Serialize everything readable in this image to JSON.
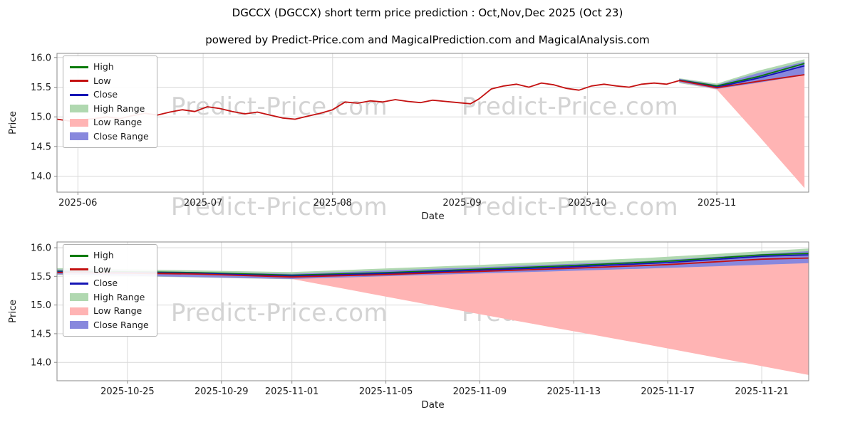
{
  "title": "DGCCX (DGCCX) short term price prediction : Oct,Nov,Dec 2025 (Oct 23)",
  "subtitle": "powered by Predict-Price.com and MagicalPrediction.com and MagicalAnalysis.com",
  "watermark": "Predict-Price.com",
  "colors": {
    "high": "#0a7a0a",
    "low": "#c41111",
    "close": "#1515b5",
    "high_range": "#b0d8b0",
    "low_range": "#ffb4b4",
    "close_range": "#8888dd",
    "grid": "#d9d9d9",
    "spine": "#8a8a8a",
    "tick_text": "#1a1a1a"
  },
  "legend": [
    {
      "label": "High",
      "type": "line",
      "color": "high"
    },
    {
      "label": "Low",
      "type": "line",
      "color": "low"
    },
    {
      "label": "Close",
      "type": "line",
      "color": "close"
    },
    {
      "label": "High Range",
      "type": "band",
      "color": "high_range"
    },
    {
      "label": "Low Range",
      "type": "band",
      "color": "low_range"
    },
    {
      "label": "Close Range",
      "type": "band",
      "color": "close_range"
    }
  ],
  "chart_data": [
    {
      "id": "chart-0",
      "type": "line",
      "xlabel": "Date",
      "ylabel": "Price",
      "xlim": [
        "2025-05-27",
        "2025-11-23"
      ],
      "ylim": [
        13.73,
        16.07
      ],
      "yticks": [
        14.0,
        14.5,
        15.0,
        15.5,
        16.0
      ],
      "xticks": [
        [
          "2025-06-01",
          "2025-06"
        ],
        [
          "2025-07-01",
          "2025-07"
        ],
        [
          "2025-08-01",
          "2025-08"
        ],
        [
          "2025-09-01",
          "2025-09"
        ],
        [
          "2025-10-01",
          "2025-10"
        ],
        [
          "2025-11-01",
          "2025-11"
        ]
      ],
      "bands": [
        {
          "name": "High Range",
          "color": "high_range",
          "dates": [
            "2025-10-23",
            "2025-11-01",
            "2025-11-11",
            "2025-11-22"
          ],
          "upper": [
            15.65,
            15.56,
            15.78,
            15.97
          ],
          "lower": [
            15.57,
            15.46,
            15.56,
            15.76
          ]
        },
        {
          "name": "Low Range",
          "color": "low_range",
          "dates": [
            "2025-10-23",
            "2025-11-01",
            "2025-11-11",
            "2025-11-22"
          ],
          "upper": [
            15.63,
            15.52,
            15.62,
            15.73
          ],
          "lower": [
            15.58,
            15.46,
            14.68,
            13.8
          ]
        },
        {
          "name": "Close Range",
          "color": "close_range",
          "dates": [
            "2025-10-23",
            "2025-11-01",
            "2025-11-11",
            "2025-11-22"
          ],
          "upper": [
            15.64,
            15.54,
            15.74,
            15.93
          ],
          "lower": [
            15.585,
            15.47,
            15.575,
            15.7
          ]
        }
      ],
      "series": [
        {
          "name": "High",
          "color": "high",
          "points": [
            [
              "2025-10-23",
              15.62
            ],
            [
              "2025-11-01",
              15.52
            ],
            [
              "2025-11-11",
              15.68
            ],
            [
              "2025-11-22",
              15.9
            ]
          ]
        },
        {
          "name": "Close",
          "color": "close",
          "points": [
            [
              "2025-10-23",
              15.615
            ],
            [
              "2025-11-01",
              15.5
            ],
            [
              "2025-11-11",
              15.655
            ],
            [
              "2025-11-22",
              15.86
            ]
          ]
        },
        {
          "name": "Low",
          "color": "low",
          "points": [
            [
              "2025-05-27",
              14.96
            ],
            [
              "2025-05-30",
              14.93
            ],
            [
              "2025-06-02",
              14.95
            ],
            [
              "2025-06-05",
              14.97
            ],
            [
              "2025-06-08",
              15.0
            ],
            [
              "2025-06-11",
              14.97
            ],
            [
              "2025-06-14",
              15.02
            ],
            [
              "2025-06-17",
              15.06
            ],
            [
              "2025-06-20",
              15.03
            ],
            [
              "2025-06-23",
              15.08
            ],
            [
              "2025-06-26",
              15.12
            ],
            [
              "2025-06-29",
              15.09
            ],
            [
              "2025-07-02",
              15.17
            ],
            [
              "2025-07-05",
              15.14
            ],
            [
              "2025-07-08",
              15.09
            ],
            [
              "2025-07-11",
              15.05
            ],
            [
              "2025-07-14",
              15.08
            ],
            [
              "2025-07-17",
              15.03
            ],
            [
              "2025-07-20",
              14.98
            ],
            [
              "2025-07-23",
              14.96
            ],
            [
              "2025-07-26",
              15.01
            ],
            [
              "2025-07-29",
              15.06
            ],
            [
              "2025-08-01",
              15.12
            ],
            [
              "2025-08-04",
              15.25
            ],
            [
              "2025-08-07",
              15.23
            ],
            [
              "2025-08-10",
              15.27
            ],
            [
              "2025-08-13",
              15.25
            ],
            [
              "2025-08-16",
              15.29
            ],
            [
              "2025-08-19",
              15.26
            ],
            [
              "2025-08-22",
              15.24
            ],
            [
              "2025-08-25",
              15.28
            ],
            [
              "2025-08-28",
              15.26
            ],
            [
              "2025-08-31",
              15.24
            ],
            [
              "2025-09-03",
              15.22
            ],
            [
              "2025-09-05",
              15.3
            ],
            [
              "2025-09-08",
              15.47
            ],
            [
              "2025-09-11",
              15.52
            ],
            [
              "2025-09-14",
              15.55
            ],
            [
              "2025-09-17",
              15.5
            ],
            [
              "2025-09-20",
              15.57
            ],
            [
              "2025-09-23",
              15.54
            ],
            [
              "2025-09-26",
              15.48
            ],
            [
              "2025-09-29",
              15.45
            ],
            [
              "2025-10-02",
              15.52
            ],
            [
              "2025-10-05",
              15.55
            ],
            [
              "2025-10-08",
              15.52
            ],
            [
              "2025-10-11",
              15.5
            ],
            [
              "2025-10-14",
              15.55
            ],
            [
              "2025-10-17",
              15.57
            ],
            [
              "2025-10-20",
              15.55
            ],
            [
              "2025-10-23",
              15.61
            ],
            [
              "2025-11-01",
              15.49
            ],
            [
              "2025-11-11",
              15.6
            ],
            [
              "2025-11-22",
              15.71
            ]
          ]
        }
      ]
    },
    {
      "id": "chart-1",
      "type": "line",
      "xlabel": "Date",
      "ylabel": "Price",
      "xlim": [
        "2025-10-22",
        "2025-11-23"
      ],
      "ylim": [
        13.68,
        16.1
      ],
      "yticks": [
        14.0,
        14.5,
        15.0,
        15.5,
        16.0
      ],
      "xticks": [
        [
          "2025-10-25",
          "2025-10-25"
        ],
        [
          "2025-10-29",
          "2025-10-29"
        ],
        [
          "2025-11-01",
          "2025-11-01"
        ],
        [
          "2025-11-05",
          "2025-11-05"
        ],
        [
          "2025-11-09",
          "2025-11-09"
        ],
        [
          "2025-11-13",
          "2025-11-13"
        ],
        [
          "2025-11-17",
          "2025-11-17"
        ],
        [
          "2025-11-21",
          "2025-11-21"
        ]
      ],
      "bands": [
        {
          "name": "High Range",
          "color": "high_range",
          "dates": [
            "2025-10-22",
            "2025-11-01",
            "2025-11-09",
            "2025-11-16",
            "2025-11-23"
          ],
          "upper": [
            15.645,
            15.575,
            15.7,
            15.82,
            15.985
          ],
          "lower": [
            15.525,
            15.45,
            15.535,
            15.625,
            15.775
          ]
        },
        {
          "name": "Low Range",
          "color": "low_range",
          "dates": [
            "2025-10-22",
            "2025-11-01",
            "2025-11-09",
            "2025-11-16",
            "2025-11-23"
          ],
          "upper": [
            15.6,
            15.525,
            15.62,
            15.665,
            15.735
          ],
          "lower": [
            15.535,
            15.455,
            14.84,
            14.32,
            13.78
          ]
        },
        {
          "name": "Close Range",
          "color": "close_range",
          "dates": [
            "2025-10-22",
            "2025-11-01",
            "2025-11-09",
            "2025-11-16",
            "2025-11-23"
          ],
          "upper": [
            15.62,
            15.545,
            15.66,
            15.765,
            15.94
          ],
          "lower": [
            15.535,
            15.455,
            15.55,
            15.635,
            15.73
          ]
        }
      ],
      "series": [
        {
          "name": "High",
          "color": "high",
          "points": [
            [
              "2025-10-22",
              15.59
            ],
            [
              "2025-10-25",
              15.58
            ],
            [
              "2025-10-28",
              15.565
            ],
            [
              "2025-11-01",
              15.52
            ],
            [
              "2025-11-05",
              15.565
            ],
            [
              "2025-11-09",
              15.625
            ],
            [
              "2025-11-13",
              15.69
            ],
            [
              "2025-11-17",
              15.765
            ],
            [
              "2025-11-21",
              15.875
            ],
            [
              "2025-11-23",
              15.9
            ]
          ]
        },
        {
          "name": "Close",
          "color": "close",
          "points": [
            [
              "2025-10-22",
              15.578
            ],
            [
              "2025-10-25",
              15.568
            ],
            [
              "2025-10-28",
              15.553
            ],
            [
              "2025-11-01",
              15.505
            ],
            [
              "2025-11-05",
              15.55
            ],
            [
              "2025-11-09",
              15.608
            ],
            [
              "2025-11-13",
              15.668
            ],
            [
              "2025-11-17",
              15.74
            ],
            [
              "2025-11-21",
              15.85
            ],
            [
              "2025-11-23",
              15.875
            ]
          ]
        },
        {
          "name": "Low",
          "color": "low",
          "points": [
            [
              "2025-10-22",
              15.566
            ],
            [
              "2025-10-25",
              15.556
            ],
            [
              "2025-10-28",
              15.54
            ],
            [
              "2025-11-01",
              15.49
            ],
            [
              "2025-11-05",
              15.532
            ],
            [
              "2025-11-09",
              15.586
            ],
            [
              "2025-11-13",
              15.642
            ],
            [
              "2025-11-17",
              15.705
            ],
            [
              "2025-11-21",
              15.8
            ],
            [
              "2025-11-23",
              15.82
            ]
          ]
        }
      ]
    }
  ]
}
